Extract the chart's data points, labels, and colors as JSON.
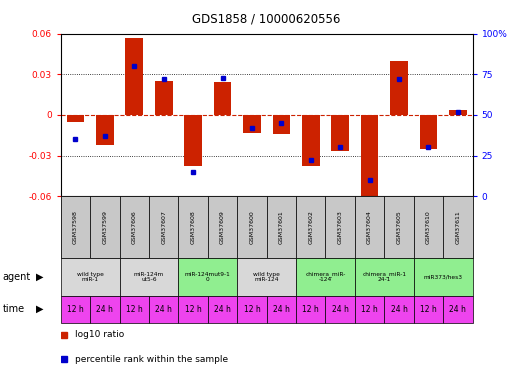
{
  "title": "GDS1858 / 10000620556",
  "samples": [
    "GSM37598",
    "GSM37599",
    "GSM37606",
    "GSM37607",
    "GSM37608",
    "GSM37609",
    "GSM37600",
    "GSM37601",
    "GSM37602",
    "GSM37603",
    "GSM37604",
    "GSM37605",
    "GSM37610",
    "GSM37611"
  ],
  "log10_ratio": [
    -0.005,
    -0.022,
    0.057,
    0.025,
    -0.038,
    0.024,
    -0.013,
    -0.014,
    -0.038,
    -0.027,
    -0.062,
    0.04,
    -0.025,
    0.004
  ],
  "percentile_rank": [
    35,
    37,
    80,
    72,
    15,
    73,
    42,
    45,
    22,
    30,
    10,
    72,
    30,
    52
  ],
  "ylim_left": [
    -0.06,
    0.06
  ],
  "ylim_right": [
    0,
    100
  ],
  "yticks_left": [
    -0.06,
    -0.03,
    0,
    0.03,
    0.06
  ],
  "yticks_right": [
    0,
    25,
    50,
    75,
    100
  ],
  "agent_groups": [
    {
      "label": "wild type\nmiR-1",
      "start": 0,
      "end": 2,
      "color": "#d8d8d8"
    },
    {
      "label": "miR-124m\nut5-6",
      "start": 2,
      "end": 4,
      "color": "#d8d8d8"
    },
    {
      "label": "miR-124mut9-1\n0",
      "start": 4,
      "end": 6,
      "color": "#90ee90"
    },
    {
      "label": "wild type\nmiR-124",
      "start": 6,
      "end": 8,
      "color": "#d8d8d8"
    },
    {
      "label": "chimera_miR-\n-124",
      "start": 8,
      "end": 10,
      "color": "#90ee90"
    },
    {
      "label": "chimera_miR-1\n24-1",
      "start": 10,
      "end": 12,
      "color": "#90ee90"
    },
    {
      "label": "miR373/hes3",
      "start": 12,
      "end": 14,
      "color": "#90ee90"
    }
  ],
  "time_labels": [
    "12 h",
    "24 h",
    "12 h",
    "24 h",
    "12 h",
    "24 h",
    "12 h",
    "24 h",
    "12 h",
    "24 h",
    "12 h",
    "24 h",
    "12 h",
    "24 h"
  ],
  "bar_color": "#cc2200",
  "dot_color": "#0000cc",
  "hline_color": "#cc2200",
  "grid_color": "#000000",
  "bg_color": "#ffffff",
  "time_bg_color": "#ee44ee",
  "sample_bg_color": "#c8c8c8"
}
